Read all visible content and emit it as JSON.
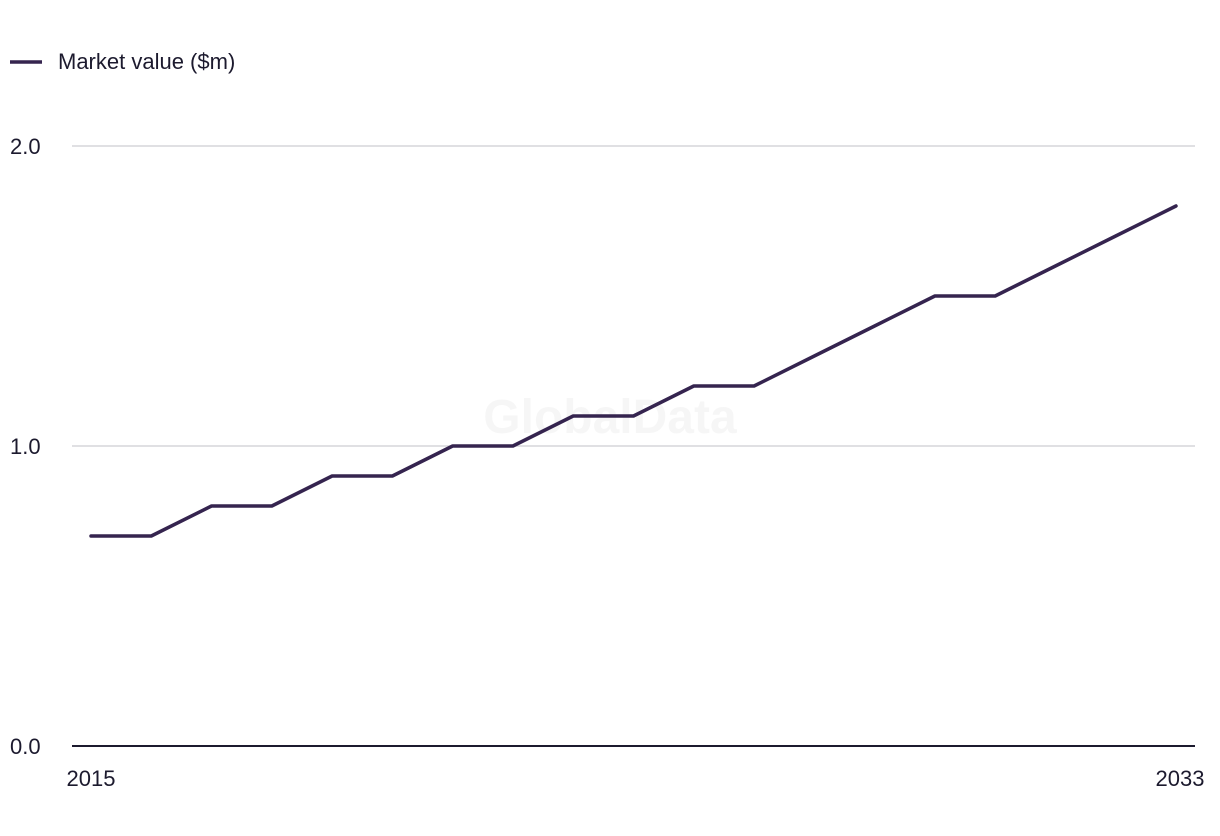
{
  "chart_data": {
    "type": "line",
    "legend": {
      "position": "top-left"
    },
    "watermark": "GlobalData",
    "x": [
      2015,
      2016,
      2017,
      2018,
      2019,
      2020,
      2021,
      2022,
      2023,
      2024,
      2025,
      2026,
      2027,
      2028,
      2029,
      2030,
      2031,
      2032,
      2033
    ],
    "x_tick_labels": [
      "2015",
      "2033"
    ],
    "y_tick_labels": [
      "0.0",
      "1.0",
      "2.0"
    ],
    "ylim": [
      0,
      2.0
    ],
    "grid": true,
    "series": [
      {
        "name": "Market value ($m)",
        "color": "#35244f",
        "values": [
          0.7,
          0.7,
          0.8,
          0.8,
          0.9,
          0.9,
          1.0,
          1.0,
          1.1,
          1.1,
          1.2,
          1.2,
          1.3,
          1.4,
          1.5,
          1.5,
          1.6,
          1.7,
          1.8
        ]
      }
    ],
    "colors": {
      "grid": "#d6d6da",
      "axis": "#1c1a2e"
    }
  }
}
